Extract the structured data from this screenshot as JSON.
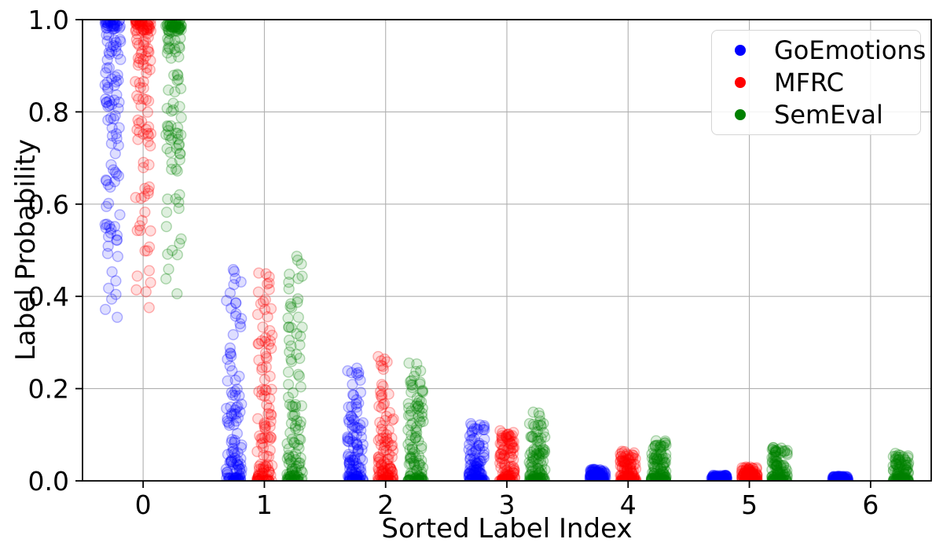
{
  "chart_data": {
    "type": "scatter",
    "variant": "jittered-strip-plot",
    "title": "",
    "xlabel": "Sorted Label Index",
    "ylabel": "Label Probability",
    "xlim": [
      -0.5,
      6.5
    ],
    "ylim": [
      0.0,
      1.0
    ],
    "xticks": [
      0,
      1,
      2,
      3,
      4,
      5,
      6
    ],
    "yticks": [
      0.0,
      0.2,
      0.4,
      0.6,
      0.8,
      1.0
    ],
    "ytick_labels": [
      "0.0",
      "0.2",
      "0.4",
      "0.6",
      "0.8",
      "1.0"
    ],
    "grid": true,
    "grid_color": "#b0b0b0",
    "spine_color": "#000000",
    "text_color": "#000000",
    "legend_position": "upper-right",
    "marker_alpha": 0.13,
    "marker_radius_px": 6.4,
    "jitter_halfwidth": 0.065,
    "points_per_group": 120,
    "series": [
      {
        "name": "GoEmotions",
        "color": "#0000ff",
        "x_offset": -0.25,
        "groups": [
          {
            "index": 0,
            "min": 0.32,
            "max": 1.0,
            "density": "near_max"
          },
          {
            "index": 1,
            "min": 0.0,
            "max": 0.47,
            "density": "near_min"
          },
          {
            "index": 2,
            "min": 0.0,
            "max": 0.25,
            "density": "near_min"
          },
          {
            "index": 3,
            "min": 0.0,
            "max": 0.13,
            "density": "near_min"
          },
          {
            "index": 4,
            "min": 0.0,
            "max": 0.025,
            "density": "near_min"
          },
          {
            "index": 5,
            "min": 0.0,
            "max": 0.012,
            "density": "near_min"
          },
          {
            "index": 6,
            "min": 0.0,
            "max": 0.01,
            "density": "near_min"
          }
        ]
      },
      {
        "name": "MFRC",
        "color": "#ff0000",
        "x_offset": 0.0,
        "groups": [
          {
            "index": 0,
            "min": 0.35,
            "max": 1.0,
            "density": "near_max"
          },
          {
            "index": 1,
            "min": 0.0,
            "max": 0.46,
            "density": "near_min"
          },
          {
            "index": 2,
            "min": 0.0,
            "max": 0.27,
            "density": "near_min"
          },
          {
            "index": 3,
            "min": 0.0,
            "max": 0.11,
            "density": "near_min"
          },
          {
            "index": 4,
            "min": 0.0,
            "max": 0.065,
            "density": "near_min"
          },
          {
            "index": 5,
            "min": 0.0,
            "max": 0.03,
            "density": "near_min"
          }
        ]
      },
      {
        "name": "SemEval",
        "color": "#008000",
        "x_offset": 0.25,
        "groups": [
          {
            "index": 0,
            "min": 0.32,
            "max": 1.0,
            "density": "near_max"
          },
          {
            "index": 1,
            "min": 0.0,
            "max": 0.49,
            "density": "near_min"
          },
          {
            "index": 2,
            "min": 0.0,
            "max": 0.26,
            "density": "near_min"
          },
          {
            "index": 3,
            "min": 0.0,
            "max": 0.15,
            "density": "near_min"
          },
          {
            "index": 4,
            "min": 0.0,
            "max": 0.09,
            "density": "near_min"
          },
          {
            "index": 5,
            "min": 0.0,
            "max": 0.075,
            "density": "near_min"
          },
          {
            "index": 6,
            "min": 0.0,
            "max": 0.06,
            "density": "near_min"
          }
        ]
      }
    ]
  }
}
